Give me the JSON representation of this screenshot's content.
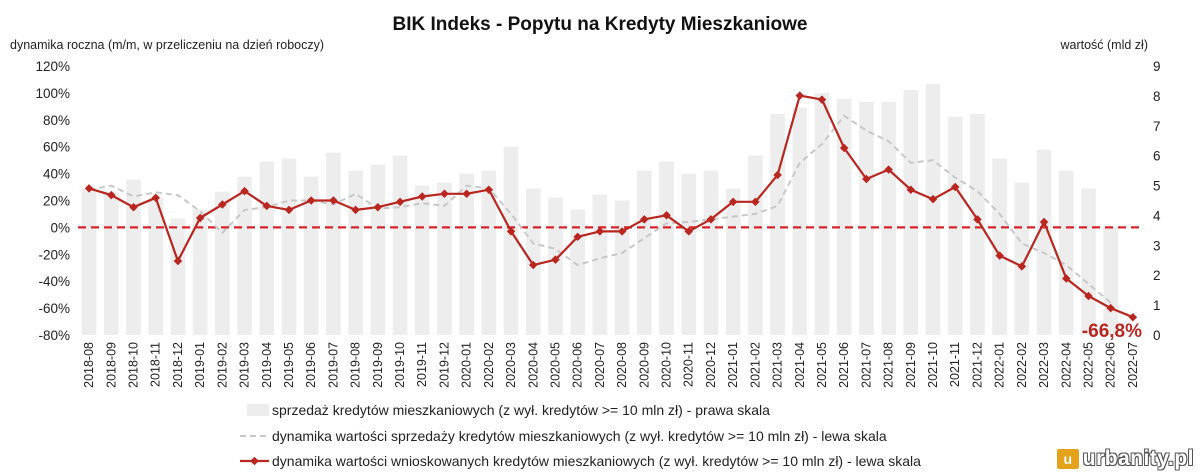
{
  "chart_data": {
    "type": "bar+line",
    "title": "BIK Indeks - Popytu na Kredyty Mieszkaniowe",
    "ylabel_left": "dynamika roczna (m/m, w przeliczeniu na dzień roboczy)",
    "ylabel_right": "wartość (mld zł)",
    "ylim_left": [
      -80,
      120
    ],
    "ylim_right": [
      0,
      9
    ],
    "yticks_left": [
      "-80%",
      "-60%",
      "-40%",
      "-20%",
      "0%",
      "20%",
      "40%",
      "60%",
      "80%",
      "100%",
      "120%"
    ],
    "yticks_right": [
      "0",
      "1",
      "2",
      "3",
      "4",
      "5",
      "6",
      "7",
      "8",
      "9"
    ],
    "categories": [
      "2018-08",
      "2018-09",
      "2018-10",
      "2018-11",
      "2018-12",
      "2019-01",
      "2019-02",
      "2019-03",
      "2019-04",
      "2019-05",
      "2019-06",
      "2019-07",
      "2019-08",
      "2019-09",
      "2019-10",
      "2019-11",
      "2019-12",
      "2020-01",
      "2020-02",
      "2020-03",
      "2020-04",
      "2020-05",
      "2020-06",
      "2020-07",
      "2020-08",
      "2020-09",
      "2020-10",
      "2020-11",
      "2020-12",
      "2021-01",
      "2021-02",
      "2021-03",
      "2021-04",
      "2021-05",
      "2021-06",
      "2021-07",
      "2021-08",
      "2021-09",
      "2021-10",
      "2021-11",
      "2021-12",
      "2022-01",
      "2022-02",
      "2022-03",
      "2022-04",
      "2022-05",
      "2022-06",
      "2022-07"
    ],
    "series": [
      {
        "name": "sprzedaż kredytów mieszkaniowych (z wył. kredytów >= 10 mln zł) - prawa skala",
        "axis": "right",
        "style": "bar",
        "color": "#ededed",
        "values": [
          4.9,
          4.8,
          5.2,
          4.6,
          3.9,
          4.2,
          4.8,
          5.3,
          5.8,
          5.9,
          5.3,
          6.1,
          5.5,
          5.7,
          6.0,
          5.0,
          5.1,
          5.4,
          5.5,
          6.3,
          4.9,
          4.6,
          4.2,
          4.7,
          4.5,
          5.5,
          5.8,
          5.4,
          5.5,
          4.9,
          6.0,
          7.4,
          7.6,
          8.1,
          7.9,
          7.8,
          7.8,
          8.2,
          8.4,
          7.3,
          7.4,
          5.9,
          5.1,
          6.2,
          5.5,
          4.9,
          3.6,
          0
        ]
      },
      {
        "name": "dynamika wartości sprzedaży kredytów mieszkaniowych (z wył. kredytów >= 10 mln zł) - lewa skala",
        "axis": "left",
        "style": "dashed",
        "color": "#c8c8c8",
        "values": [
          28,
          31,
          23,
          26,
          24,
          12,
          -4,
          13,
          15,
          20,
          20,
          17,
          25,
          14,
          15,
          18,
          16,
          31,
          29,
          10,
          -12,
          -16,
          -28,
          -23,
          -19,
          -8,
          3,
          4,
          6,
          8,
          10,
          16,
          48,
          62,
          83,
          72,
          64,
          48,
          50,
          37,
          27,
          10,
          -12,
          -19,
          -28,
          -42,
          -56,
          null
        ]
      },
      {
        "name": "dynamika wartości wnioskowanych kredytów mieszkaniowych (z wył. kredytów >= 10 mln zł) - lewa skala",
        "axis": "left",
        "style": "line-markers",
        "color": "#b8261f",
        "values": [
          29,
          24,
          15,
          22,
          -25,
          7,
          17,
          27,
          16,
          13,
          20,
          20,
          13,
          15,
          19,
          23,
          25,
          25,
          28,
          -3,
          -28,
          -24,
          -7,
          -3,
          -3,
          6,
          9,
          -3,
          6,
          19,
          19,
          39,
          98,
          95,
          59,
          36,
          43,
          28,
          21,
          30,
          6,
          -21,
          -29,
          4,
          -38,
          -51,
          -60,
          -66.8
        ]
      }
    ],
    "reference_line": {
      "axis": "left",
      "value": 0,
      "color": "#d9232b",
      "style": "dashed"
    },
    "annotations": [
      {
        "text": "-66,8%",
        "category": "2022-07"
      }
    ],
    "legend_position": "bottom",
    "grid": false
  },
  "colors": {
    "bars": "#ededed",
    "dashed": "#c8c8c8",
    "line": "#b8261f",
    "zero_line": "#d9232b"
  },
  "watermark": {
    "text": "urbanity.pl",
    "icon": "u-logo-icon"
  }
}
